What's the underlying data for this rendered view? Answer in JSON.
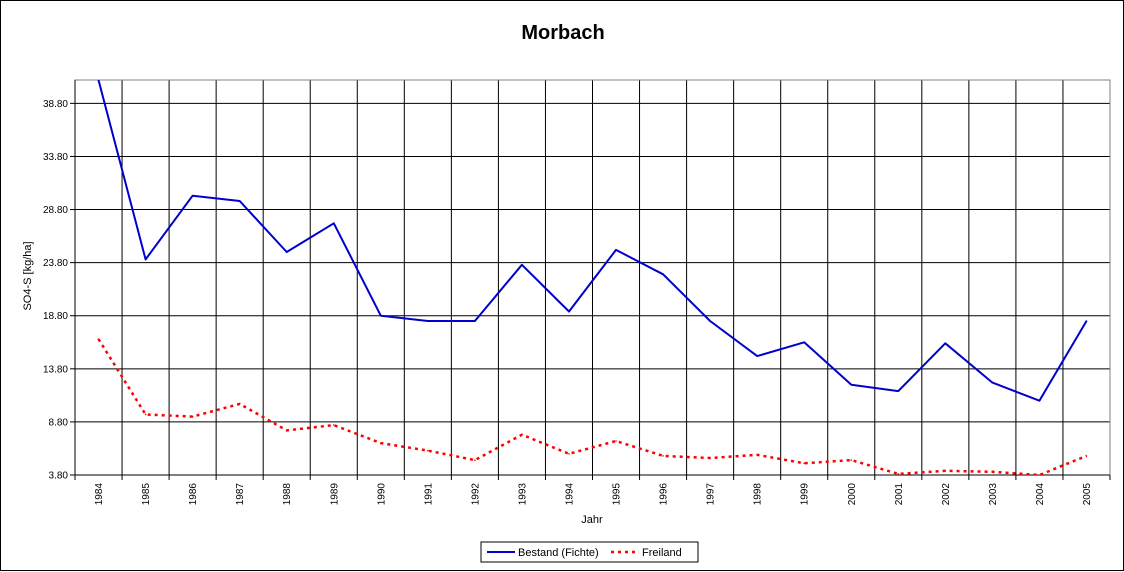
{
  "chart_data": {
    "type": "line",
    "title": "Morbach",
    "xlabel": "Jahr",
    "ylabel": "SO4-S [kg/ha]",
    "ylim": [
      3.8,
      41.0
    ],
    "yticks": [
      "3.80",
      "8.80",
      "13.80",
      "18.80",
      "23.80",
      "28.80",
      "33.80",
      "38.80"
    ],
    "categories": [
      "1984",
      "1985",
      "1986",
      "1987",
      "1988",
      "1989",
      "1990",
      "1991",
      "1992",
      "1993",
      "1994",
      "1995",
      "1996",
      "1997",
      "1998",
      "1999",
      "2000",
      "2001",
      "2002",
      "2003",
      "2004",
      "2005"
    ],
    "grid": true,
    "legend_position": "bottom-center",
    "series": [
      {
        "name": "Bestand (Fichte)",
        "color": "#0000CC",
        "style": "solid",
        "values": [
          41.0,
          24.1,
          30.1,
          29.6,
          24.8,
          27.5,
          18.8,
          18.3,
          18.3,
          23.6,
          19.2,
          25.0,
          22.7,
          18.3,
          15.0,
          16.3,
          12.3,
          11.7,
          16.2,
          12.5,
          10.8,
          18.3
        ]
      },
      {
        "name": "Freiland",
        "color": "#FF0000",
        "style": "dotted",
        "values": [
          16.6,
          9.5,
          9.3,
          10.5,
          8.0,
          8.5,
          6.8,
          6.1,
          5.2,
          7.6,
          5.8,
          7.0,
          5.6,
          5.4,
          5.7,
          4.9,
          5.2,
          3.9,
          4.2,
          4.1,
          3.8,
          5.6
        ]
      }
    ]
  }
}
